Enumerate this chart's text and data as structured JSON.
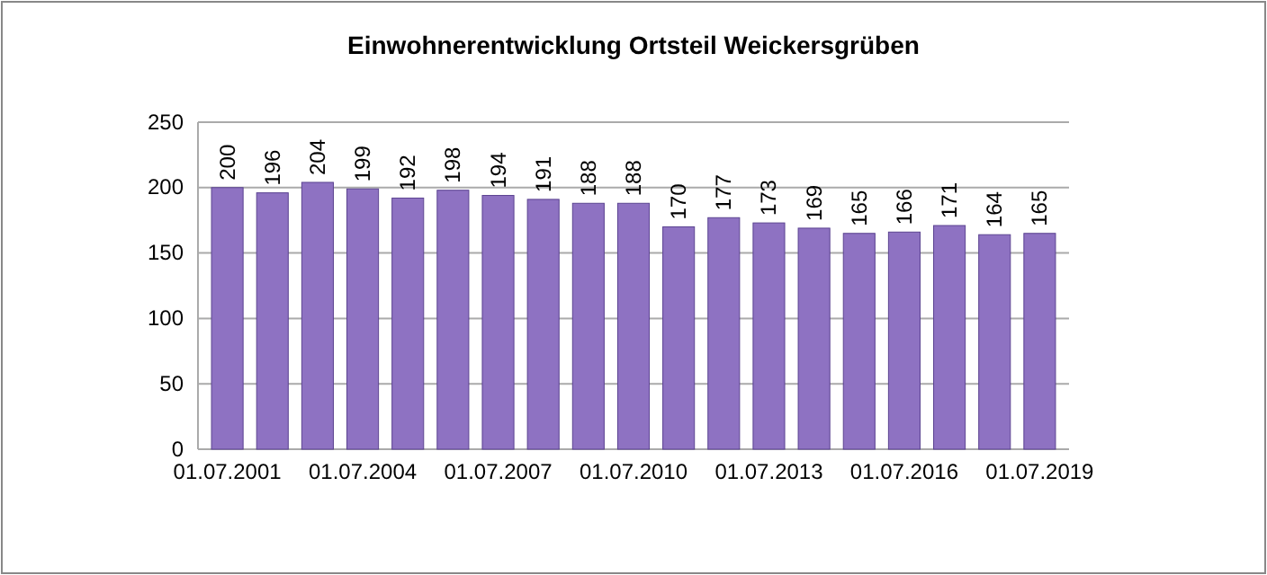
{
  "chart_data": {
    "type": "bar",
    "title": "Einwohnerentwicklung Ortsteil Weickersgrüben",
    "categories": [
      "01.07.2001",
      null,
      null,
      "01.07.2004",
      null,
      null,
      "01.07.2007",
      null,
      null,
      "01.07.2010",
      null,
      null,
      "01.07.2013",
      null,
      null,
      "01.07.2016",
      null,
      null,
      "01.07.2019"
    ],
    "values": [
      200,
      196,
      204,
      199,
      192,
      198,
      194,
      191,
      188,
      188,
      170,
      177,
      173,
      169,
      165,
      166,
      171,
      164,
      165
    ],
    "color": "#8e72c2",
    "ylim": [
      0,
      250
    ],
    "yticks": [
      0,
      50,
      100,
      150,
      200,
      250
    ],
    "grid": "y",
    "data_labels": true
  }
}
